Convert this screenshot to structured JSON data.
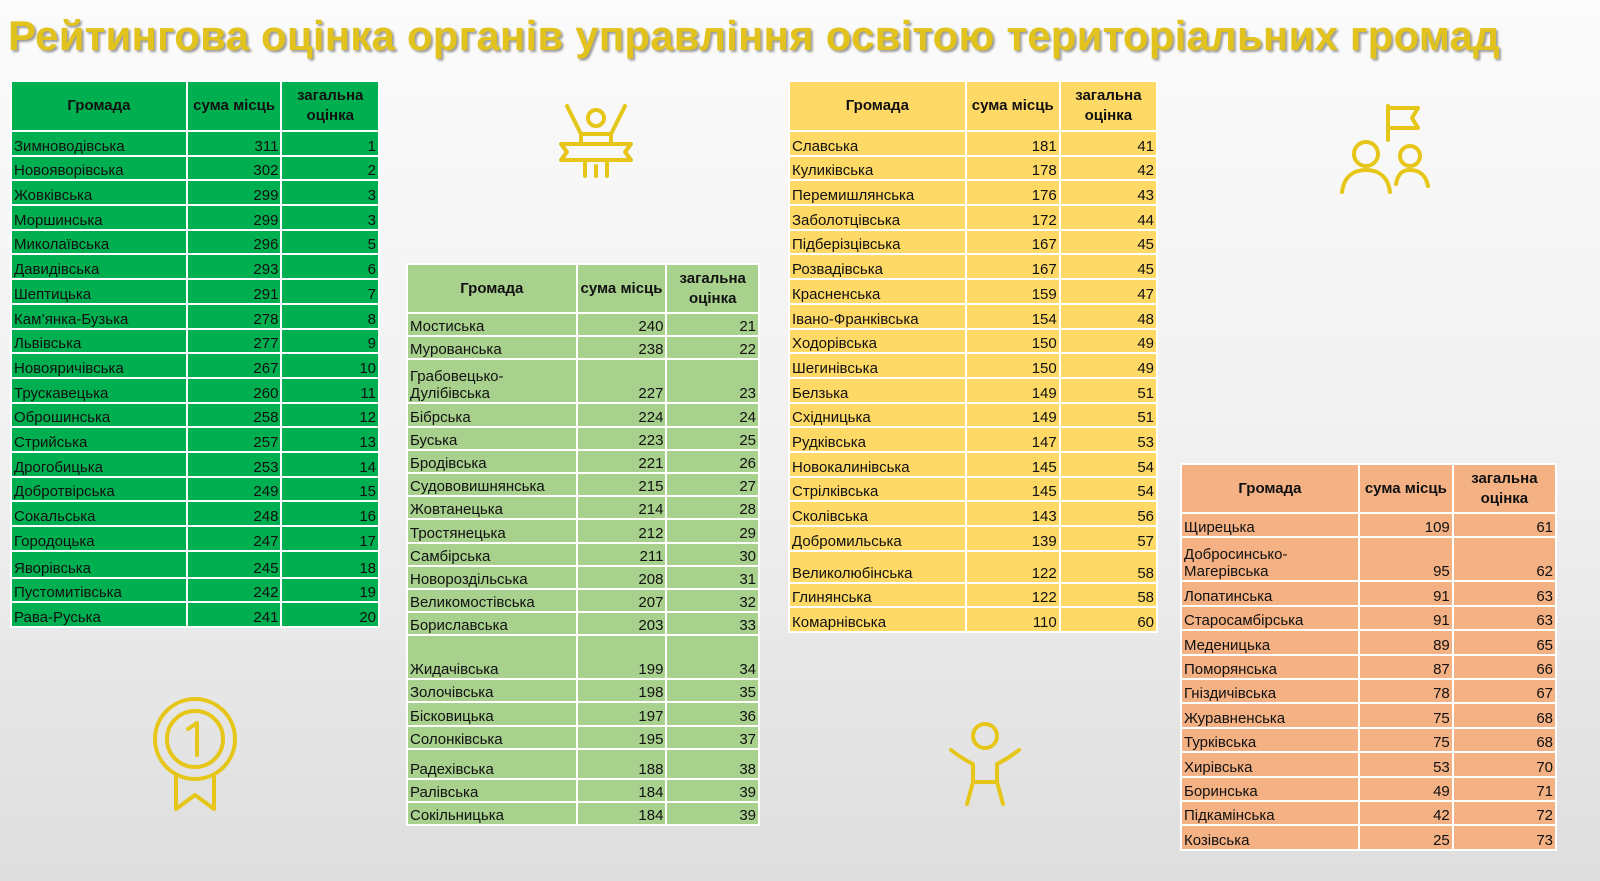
{
  "title": "Рейтингова оцінка органів управління освітою територіальних громад",
  "colors": {
    "title": "#e2c21c",
    "table1": "#00b050",
    "table2": "#a9d18e",
    "table3": "#ffd966",
    "table4": "#f4b183",
    "icons": "#e6c619"
  },
  "headers": {
    "community": "Громада",
    "sum": "сума місць",
    "score": "загальна оцінка"
  },
  "icons": [
    "winner-podium-icon",
    "people-flag-icon",
    "medal-icon",
    "child-icon"
  ],
  "tables": [
    {
      "rows": [
        [
          "Зимноводівська",
          "311",
          "1"
        ],
        [
          "Новояворівська",
          "302",
          "2"
        ],
        [
          "Жовківська",
          "299",
          "3"
        ],
        [
          "Моршинська",
          "299",
          "3"
        ],
        [
          "Миколаївська",
          "296",
          "5"
        ],
        [
          "Давидівська",
          "293",
          "6"
        ],
        [
          "Шептицька",
          "291",
          "7"
        ],
        [
          "Кам’янка-Бузька",
          "278",
          "8"
        ],
        [
          "Львівська",
          "277",
          "9"
        ],
        [
          "Новояричівська",
          "267",
          "10"
        ],
        [
          "Трускавецька",
          "260",
          "11"
        ],
        [
          "Оброшинська",
          "258",
          "12"
        ],
        [
          "Стрийська",
          "257",
          "13"
        ],
        [
          "Дрогобицька",
          "253",
          "14"
        ],
        [
          "Добротвірська",
          "249",
          "15"
        ],
        [
          "Сокальська",
          "248",
          "16"
        ],
        [
          "Городоцька",
          "247",
          "17"
        ],
        [
          "Яворівська",
          "245",
          "18"
        ],
        [
          "Пустомитівська",
          "242",
          "19"
        ],
        [
          "Рава-Руська",
          "241",
          "20"
        ]
      ]
    },
    {
      "rows": [
        [
          "Мостиська",
          "240",
          "21"
        ],
        [
          "Мурованська",
          "238",
          "22"
        ],
        [
          "Грабовецько-Дулібівська",
          "227",
          "23"
        ],
        [
          "Бібрська",
          "224",
          "24"
        ],
        [
          "Буська",
          "223",
          "25"
        ],
        [
          "Бродівська",
          "221",
          "26"
        ],
        [
          "Судововишнянська",
          "215",
          "27"
        ],
        [
          "Жовтанецька",
          "214",
          "28"
        ],
        [
          "Тростянецька",
          "212",
          "29"
        ],
        [
          "Самбірська",
          "211",
          "30"
        ],
        [
          "Новороздільська",
          "208",
          "31"
        ],
        [
          "Великомостівська",
          "207",
          "32"
        ],
        [
          "Бориславська",
          "203",
          "33"
        ],
        [
          "Жидачівська",
          "199",
          "34"
        ],
        [
          "Золочівська",
          "198",
          "35"
        ],
        [
          "Бісковицька",
          "197",
          "36"
        ],
        [
          "Солонківська",
          "195",
          "37"
        ],
        [
          "Радехівська",
          "188",
          "38"
        ],
        [
          "Ралівська",
          "184",
          "39"
        ],
        [
          "Сокільницька",
          "184",
          "39"
        ]
      ]
    },
    {
      "rows": [
        [
          "Славська",
          "181",
          "41"
        ],
        [
          "Куликівська",
          "178",
          "42"
        ],
        [
          "Перемишлянська",
          "176",
          "43"
        ],
        [
          "Заболотцівська",
          "172",
          "44"
        ],
        [
          "Підберізцівська",
          "167",
          "45"
        ],
        [
          "Розвадівська",
          "167",
          "45"
        ],
        [
          "Красненська",
          "159",
          "47"
        ],
        [
          "Івано-Франківська",
          "154",
          "48"
        ],
        [
          "Ходорівська",
          "150",
          "49"
        ],
        [
          "Шегинівська",
          "150",
          "49"
        ],
        [
          "Белзька",
          "149",
          "51"
        ],
        [
          "Східницька",
          "149",
          "51"
        ],
        [
          "Рудківська",
          "147",
          "53"
        ],
        [
          "Новокалинівська",
          "145",
          "54"
        ],
        [
          "Стрілківська",
          "145",
          "54"
        ],
        [
          "Сколівська",
          "143",
          "56"
        ],
        [
          "Добромильська",
          "139",
          "57"
        ],
        [
          "Великолюбінська",
          "122",
          "58"
        ],
        [
          "Глинянська",
          "122",
          "58"
        ],
        [
          "Комарнівська",
          "110",
          "60"
        ]
      ]
    },
    {
      "rows": [
        [
          "Щирецька",
          "109",
          "61"
        ],
        [
          "Добросинсько-Магерівська",
          "95",
          "62"
        ],
        [
          "Лопатинська",
          "91",
          "63"
        ],
        [
          "Старосамбірська",
          "91",
          "63"
        ],
        [
          "Меденицька",
          "89",
          "65"
        ],
        [
          "Поморянська",
          "87",
          "66"
        ],
        [
          "Гніздичівська",
          "78",
          "67"
        ],
        [
          "Журавненська",
          "75",
          "68"
        ],
        [
          "Турківська",
          "75",
          "68"
        ],
        [
          "Хирівська",
          "53",
          "70"
        ],
        [
          "Боринська",
          "49",
          "71"
        ],
        [
          "Підкамінська",
          "42",
          "72"
        ],
        [
          "Козівська",
          "25",
          "73"
        ]
      ]
    }
  ]
}
